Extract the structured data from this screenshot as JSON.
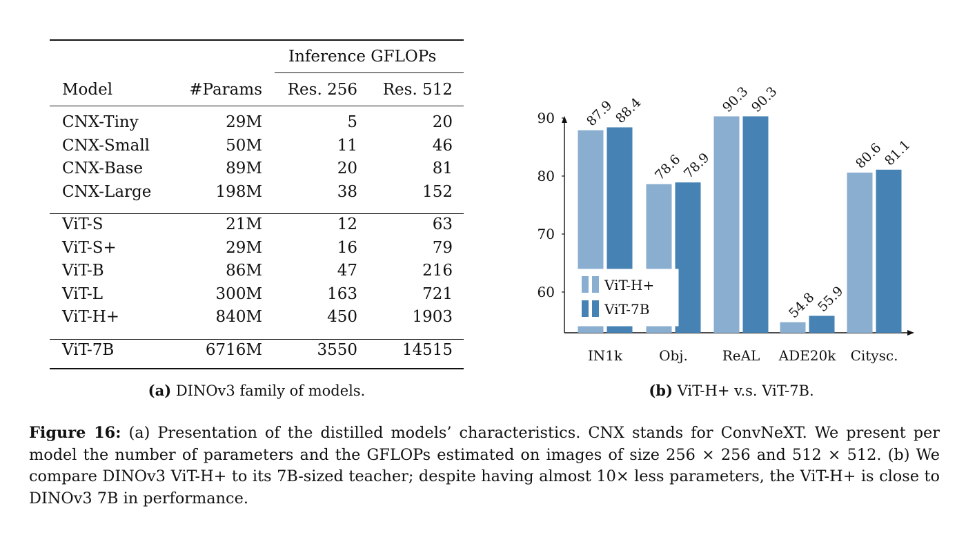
{
  "table": {
    "group_header": "Inference GFLOPs",
    "headers": [
      "Model",
      "#Params",
      "Res. 256",
      "Res. 512"
    ],
    "groups": [
      [
        [
          "CNX-Tiny",
          "29M",
          "5",
          "20"
        ],
        [
          "CNX-Small",
          "50M",
          "11",
          "46"
        ],
        [
          "CNX-Base",
          "89M",
          "20",
          "81"
        ],
        [
          "CNX-Large",
          "198M",
          "38",
          "152"
        ]
      ],
      [
        [
          "ViT-S",
          "21M",
          "12",
          "63"
        ],
        [
          "ViT-S+",
          "29M",
          "16",
          "79"
        ],
        [
          "ViT-B",
          "86M",
          "47",
          "216"
        ],
        [
          "ViT-L",
          "300M",
          "163",
          "721"
        ],
        [
          "ViT-H+",
          "840M",
          "450",
          "1903"
        ]
      ],
      [
        [
          "ViT-7B",
          "6716M",
          "3550",
          "14515"
        ]
      ]
    ]
  },
  "captions": {
    "a_label": "(a)",
    "a_text": "DINOv3 family of models.",
    "b_label": "(b)",
    "b_text": "ViT-H+ v.s. ViT-7B."
  },
  "chart_data": {
    "type": "bar",
    "categories": [
      "IN1k",
      "Obj.",
      "ReAL",
      "ADE20k",
      "Citysc."
    ],
    "series": [
      {
        "name": "ViT-H+",
        "values": [
          87.9,
          78.6,
          90.3,
          54.8,
          80.6
        ],
        "labels": [
          "87.9",
          "78.6",
          "90.3",
          "54.8",
          "80.6"
        ],
        "color": "#8aaed0"
      },
      {
        "name": "ViT-7B",
        "values": [
          88.4,
          78.9,
          90.3,
          55.9,
          81.1
        ],
        "labels": [
          "88.4",
          "78.9",
          "90.3",
          "55.9",
          "81.1"
        ],
        "color": "#4682b4"
      }
    ],
    "y_ticks": [
      "60",
      "70",
      "80",
      "90"
    ],
    "ylim": [
      53,
      91
    ],
    "legend_position": "bottom-left",
    "grid": false
  },
  "figure_caption": {
    "label": "Figure 16:",
    "text": "(a) Presentation of the distilled models’ characteristics. CNX stands for ConvNeXT. We present per model the number of parameters and the GFLOPs estimated on images of size 256 × 256 and 512 × 512. (b) We compare DINOv3 ViT-H+ to its 7B-sized teacher; despite having almost 10× less parameters, the ViT-H+ is close to DINOv3 7B in performance."
  }
}
